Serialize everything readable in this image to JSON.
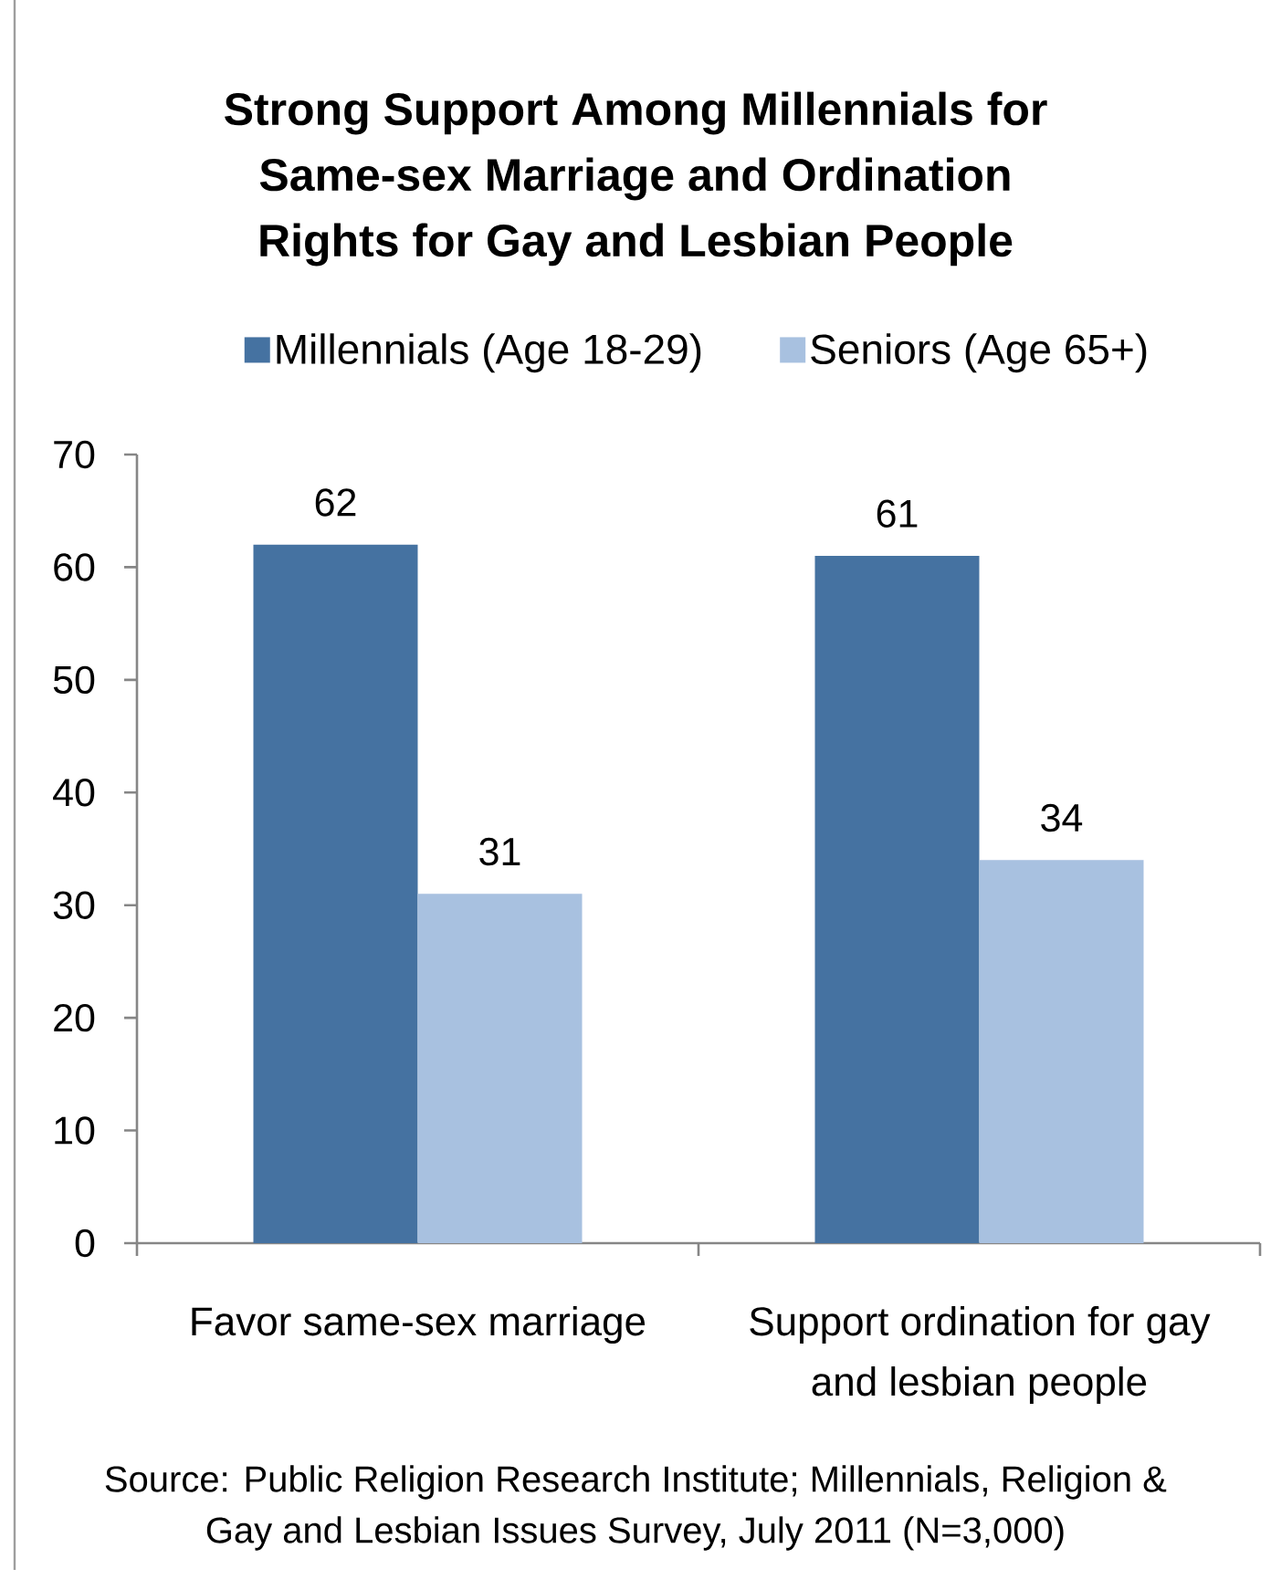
{
  "chart_data": {
    "type": "bar",
    "title": "Strong Support Among Millennials for Same-sex Marriage and Ordination Rights for Gay and Lesbian People",
    "categories": [
      "Favor same-sex marriage",
      "Support ordination for gay and lesbian people"
    ],
    "series": [
      {
        "name": "Millennials (Age 18-29)",
        "color": "#4572a1",
        "values": [
          62,
          61
        ]
      },
      {
        "name": "Seniors (Age 65+)",
        "color": "#a8c1e0",
        "values": [
          31,
          34
        ]
      }
    ],
    "ylim": [
      0,
      70
    ],
    "yticks": [
      0,
      10,
      20,
      30,
      40,
      50,
      60,
      70
    ],
    "legend": "top",
    "data_labels": true,
    "annotations": [
      "Source: Public Religion Research Institute; Millennials, Religion & Gay and Lesbian Issues Survey, July 2011 (N=3,000)"
    ]
  }
}
